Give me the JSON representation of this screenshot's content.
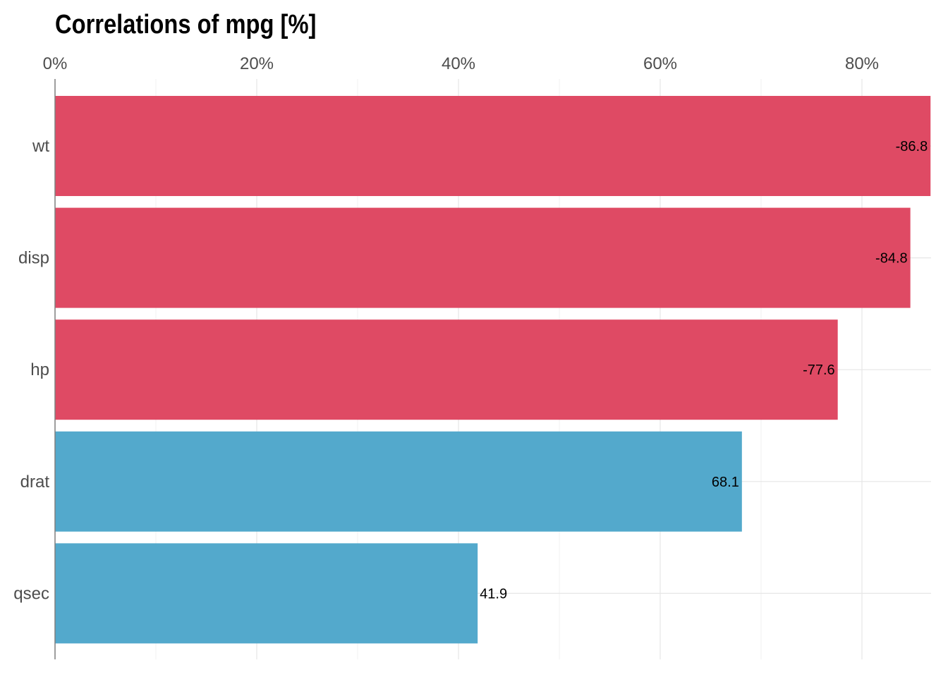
{
  "chart_data": {
    "type": "bar",
    "orientation": "horizontal",
    "title": "Correlations of mpg [%]",
    "xlabel": "",
    "ylabel": "",
    "xlim": [
      0,
      86.8
    ],
    "x_ticks": [
      {
        "value": 0,
        "label": "0%"
      },
      {
        "value": 20,
        "label": "20%"
      },
      {
        "value": 40,
        "label": "40%"
      },
      {
        "value": 60,
        "label": "60%"
      },
      {
        "value": 80,
        "label": "80%"
      }
    ],
    "x_axis_position": "top",
    "grid": true,
    "legend": "none",
    "categories": [
      "wt",
      "disp",
      "hp",
      "drat",
      "qsec"
    ],
    "values": [
      -86.8,
      -84.8,
      -77.6,
      68.1,
      41.9
    ],
    "data_labels": [
      "-86.8",
      "-84.8",
      "-77.6",
      "68.1",
      "41.9"
    ],
    "bar_length": "absolute value",
    "colors": {
      "negative": "#df4a64",
      "positive": "#53a9cc",
      "grid": "#e6e6e6",
      "axis": "#7f7f7f"
    }
  }
}
